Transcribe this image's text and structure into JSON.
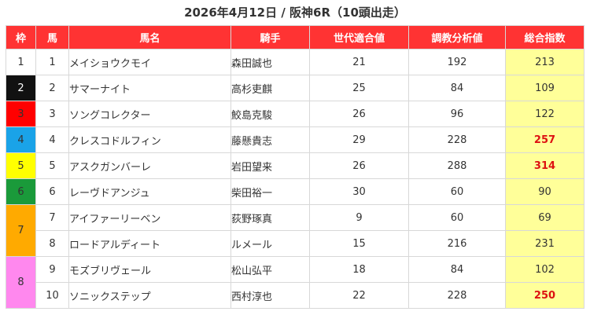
{
  "title": "2026年4月12日 / 阪神6R（10頭出走）",
  "headers": [
    "枠",
    "馬",
    "馬名",
    "騎手",
    "世代適合値",
    "調教分析値",
    "総合指数"
  ],
  "colors": {
    "header_bg": "#ff3333",
    "score_bg": "#ffff99",
    "highlight_text": "#dd1111",
    "waku": {
      "1": "#ffffff",
      "2": "#111111",
      "3": "#ff0000",
      "4": "#1aa3e8",
      "5": "#ffff00",
      "6": "#1a9a3a",
      "7": "#ffaa00",
      "8": "#ff88ee"
    }
  },
  "rows": [
    {
      "waku": "1",
      "umaban": "1",
      "name": "メイショウクモイ",
      "jockey": "森田誠也",
      "sedai": "21",
      "chokyo": "192",
      "sogo": "213",
      "highlight": false
    },
    {
      "waku": "2",
      "umaban": "2",
      "name": "サマーナイト",
      "jockey": "高杉吏麒",
      "sedai": "25",
      "chokyo": "84",
      "sogo": "109",
      "highlight": false
    },
    {
      "waku": "3",
      "umaban": "3",
      "name": "ソングコレクター",
      "jockey": "鮫島克駿",
      "sedai": "26",
      "chokyo": "96",
      "sogo": "122",
      "highlight": false
    },
    {
      "waku": "4",
      "umaban": "4",
      "name": "クレスコドルフィン",
      "jockey": "藤懸貴志",
      "sedai": "29",
      "chokyo": "228",
      "sogo": "257",
      "highlight": true
    },
    {
      "waku": "5",
      "umaban": "5",
      "name": "アスクガンバーレ",
      "jockey": "岩田望来",
      "sedai": "26",
      "chokyo": "288",
      "sogo": "314",
      "highlight": true
    },
    {
      "waku": "6",
      "umaban": "6",
      "name": "レーヴドアンジュ",
      "jockey": "柴田裕一",
      "sedai": "30",
      "chokyo": "60",
      "sogo": "90",
      "highlight": false
    },
    {
      "waku": "7",
      "umaban": "7",
      "name": "アイファーリーベン",
      "jockey": "荻野琢真",
      "sedai": "9",
      "chokyo": "60",
      "sogo": "69",
      "highlight": false
    },
    {
      "waku": "7",
      "umaban": "8",
      "name": "ロードアルディート",
      "jockey": "ルメール",
      "sedai": "15",
      "chokyo": "216",
      "sogo": "231",
      "highlight": false
    },
    {
      "waku": "8",
      "umaban": "9",
      "name": "モズブリヴェール",
      "jockey": "松山弘平",
      "sedai": "18",
      "chokyo": "84",
      "sogo": "102",
      "highlight": false
    },
    {
      "waku": "8",
      "umaban": "10",
      "name": "ソニックステップ",
      "jockey": "西村淳也",
      "sedai": "22",
      "chokyo": "228",
      "sogo": "250",
      "highlight": true
    }
  ]
}
